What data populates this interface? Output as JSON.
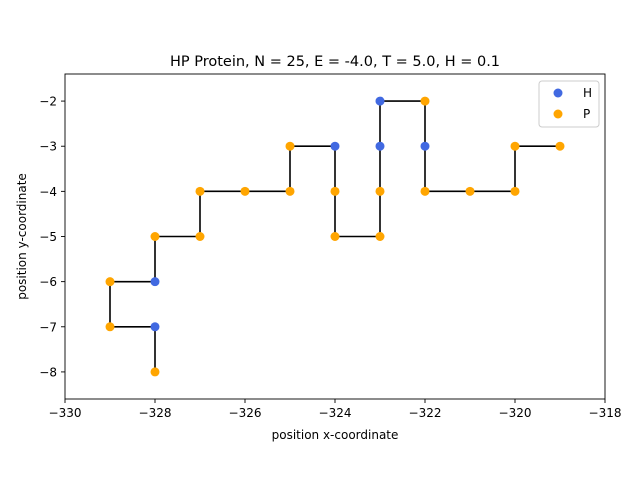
{
  "chart_data": {
    "type": "scatter",
    "title": "HP Protein, N = 25, E = -4.0, T = 5.0, H = 0.1",
    "xlabel": "position x-coordinate",
    "ylabel": "position y-coordinate",
    "xlim": [
      -330,
      -318
    ],
    "ylim": [
      -8.6,
      -1.4
    ],
    "xticks": [
      -330,
      -328,
      -326,
      -324,
      -322,
      -320,
      -318
    ],
    "yticks": [
      -8,
      -7,
      -6,
      -5,
      -4,
      -3,
      -2
    ],
    "xtick_labels": [
      "−330",
      "−328",
      "−326",
      "−324",
      "−322",
      "−320",
      "−318"
    ],
    "ytick_labels": [
      "−8",
      "−7",
      "−6",
      "−5",
      "−4",
      "−3",
      "−2"
    ],
    "grid": false,
    "legend_position": "top-right",
    "colors": {
      "H": "#4169e1",
      "P": "#ffa500",
      "chain": "#000000"
    },
    "series": [
      {
        "name": "H",
        "color": "#4169e1"
      },
      {
        "name": "P",
        "color": "#ffa500"
      }
    ],
    "chain": [
      {
        "x": -328,
        "y": -8,
        "type": "P"
      },
      {
        "x": -328,
        "y": -7,
        "type": "H"
      },
      {
        "x": -329,
        "y": -7,
        "type": "P"
      },
      {
        "x": -329,
        "y": -6,
        "type": "P"
      },
      {
        "x": -328,
        "y": -6,
        "type": "H"
      },
      {
        "x": -328,
        "y": -5,
        "type": "P"
      },
      {
        "x": -327,
        "y": -5,
        "type": "P"
      },
      {
        "x": -327,
        "y": -4,
        "type": "P"
      },
      {
        "x": -326,
        "y": -4,
        "type": "P"
      },
      {
        "x": -325,
        "y": -4,
        "type": "P"
      },
      {
        "x": -325,
        "y": -3,
        "type": "P"
      },
      {
        "x": -324,
        "y": -3,
        "type": "H"
      },
      {
        "x": -324,
        "y": -4,
        "type": "P"
      },
      {
        "x": -324,
        "y": -5,
        "type": "P"
      },
      {
        "x": -323,
        "y": -5,
        "type": "P"
      },
      {
        "x": -323,
        "y": -4,
        "type": "P"
      },
      {
        "x": -323,
        "y": -3,
        "type": "H"
      },
      {
        "x": -323,
        "y": -2,
        "type": "H"
      },
      {
        "x": -322,
        "y": -2,
        "type": "P"
      },
      {
        "x": -322,
        "y": -3,
        "type": "H"
      },
      {
        "x": -322,
        "y": -4,
        "type": "P"
      },
      {
        "x": -321,
        "y": -4,
        "type": "P"
      },
      {
        "x": -320,
        "y": -4,
        "type": "P"
      },
      {
        "x": -320,
        "y": -3,
        "type": "P"
      },
      {
        "x": -319,
        "y": -3,
        "type": "P"
      }
    ]
  }
}
